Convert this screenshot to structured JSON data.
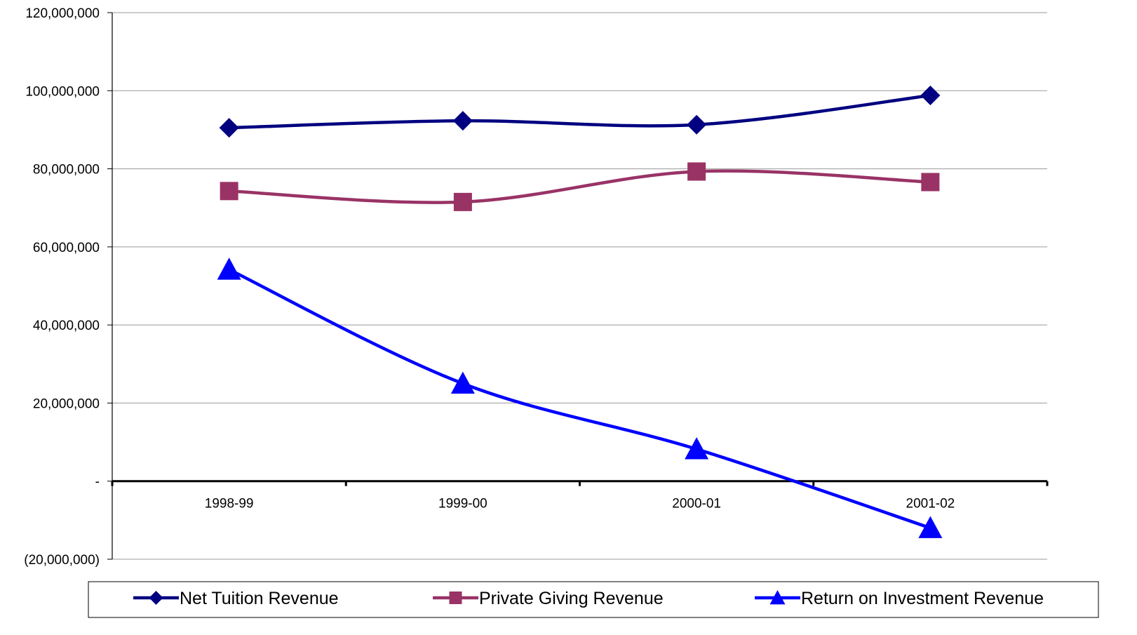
{
  "chart_data": {
    "type": "line",
    "title": "",
    "xlabel": "",
    "ylabel": "",
    "categories": [
      "1998-99",
      "1999-00",
      "2000-01",
      "2001-02"
    ],
    "ylim": [
      -20000000,
      120000000
    ],
    "y_ticks": [
      {
        "value": 120000000,
        "label": "120,000,000"
      },
      {
        "value": 100000000,
        "label": "100,000,000"
      },
      {
        "value": 80000000,
        "label": "80,000,000"
      },
      {
        "value": 60000000,
        "label": "60,000,000"
      },
      {
        "value": 40000000,
        "label": "40,000,000"
      },
      {
        "value": 20000000,
        "label": "20,000,000"
      },
      {
        "value": 0,
        "label": "-"
      },
      {
        "value": -20000000,
        "label": "(20,000,000)"
      }
    ],
    "grid": true,
    "legend_position": "bottom",
    "series": [
      {
        "name": "Net Tuition Revenue",
        "values": [
          90500000,
          92300000,
          91300000,
          98800000
        ],
        "color": "#000080",
        "marker": "diamond"
      },
      {
        "name": "Private Giving Revenue",
        "values": [
          74300000,
          71500000,
          79300000,
          76600000
        ],
        "color": "#993366",
        "marker": "square"
      },
      {
        "name": "Return on Investment Revenue",
        "values": [
          54200000,
          25000000,
          8200000,
          -12000000
        ],
        "color": "#0000FF",
        "marker": "triangle"
      }
    ]
  }
}
